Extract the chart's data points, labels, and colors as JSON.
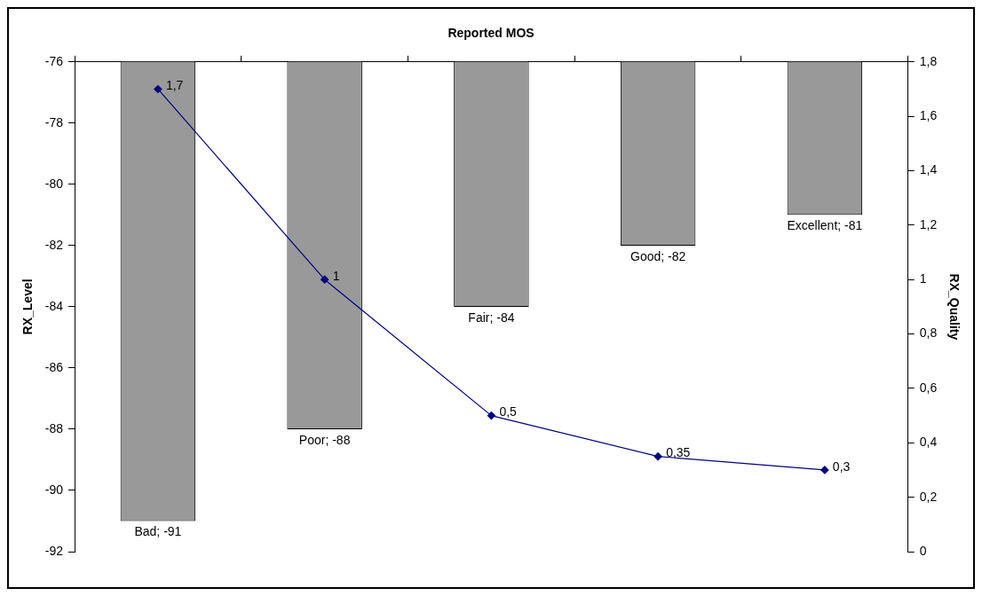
{
  "chart_data": {
    "type": "bar",
    "title": "Reported MOS",
    "ylabel": "RX_Level",
    "y2label": "RX_Quality",
    "categories": [
      null,
      null,
      null,
      null,
      null
    ],
    "series": [
      {
        "color": "#999999",
        "values": [
          -91,
          -88,
          -84,
          -82,
          -81
        ],
        "value_labels": [
          "Bad; -91",
          "Poor; -88",
          "Fair; -84",
          "Good; -82",
          "Excellent; -81"
        ]
      },
      {
        "type": "line",
        "axis": "y2",
        "color": "#000080",
        "marker": "diamond",
        "line_style": "solid",
        "values": [
          1.7,
          1,
          0.5,
          0.35,
          0.3
        ],
        "value_labels": [
          "1,7",
          "1",
          "0,5",
          "0,35",
          "0,3"
        ]
      }
    ],
    "ylim": [
      -92,
      -76
    ],
    "yticks": [
      -92,
      -90,
      -88,
      -86,
      -84,
      -82,
      -80,
      -78,
      -76
    ],
    "y2lim": [
      0,
      1.8
    ],
    "y2ticks": [
      0,
      {
        "value": 0.2,
        "label": "0,2"
      },
      {
        "value": 0.4,
        "label": "0,4"
      },
      {
        "value": 0.6,
        "label": "0,6"
      },
      {
        "value": 0.8,
        "label": "0,8"
      },
      1,
      {
        "value": 1.2,
        "label": "1,2"
      },
      {
        "value": 1.4,
        "label": "1,4"
      },
      {
        "value": 1.6,
        "label": "1,6"
      },
      {
        "value": 1.8,
        "label": "1,8"
      }
    ],
    "tick_labels": "y",
    "grid": false,
    "legend": false
  }
}
